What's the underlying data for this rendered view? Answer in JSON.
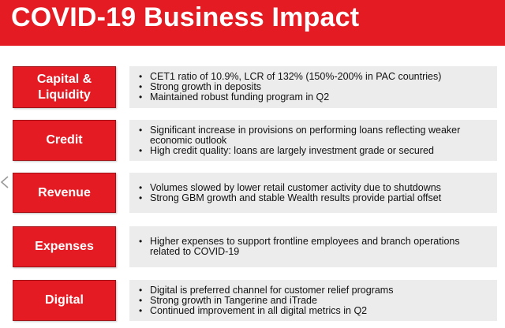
{
  "slide": {
    "title": "COVID-19 Business Impact"
  },
  "colors": {
    "brand_red": "#e41b23",
    "panel_gray": "#ececec"
  },
  "icons": {
    "previous": "chevron-left-icon",
    "bullet": "bullet-icon"
  },
  "rows": [
    {
      "label": "Capital & Liquidity",
      "bullets": [
        "CET1 ratio of 10.9%, LCR of 132% (150%-200% in PAC countries)",
        "Strong growth in deposits",
        "Maintained robust funding program in Q2"
      ]
    },
    {
      "label": "Credit",
      "bullets": [
        "Significant increase in provisions on performing loans reflecting weaker economic outlook",
        "High credit quality: loans are largely investment grade or secured"
      ]
    },
    {
      "label": "Revenue",
      "bullets": [
        "Volumes slowed by lower retail customer activity due to shutdowns",
        "Strong GBM growth and stable Wealth results provide partial offset"
      ]
    },
    {
      "label": "Expenses",
      "bullets": [
        "Higher expenses to support frontline employees and branch operations related to COVID-19"
      ]
    },
    {
      "label": "Digital",
      "bullets": [
        "Digital is preferred channel for customer relief programs",
        "Strong growth in Tangerine and iTrade",
        "Continued improvement in all digital metrics in Q2"
      ]
    }
  ]
}
